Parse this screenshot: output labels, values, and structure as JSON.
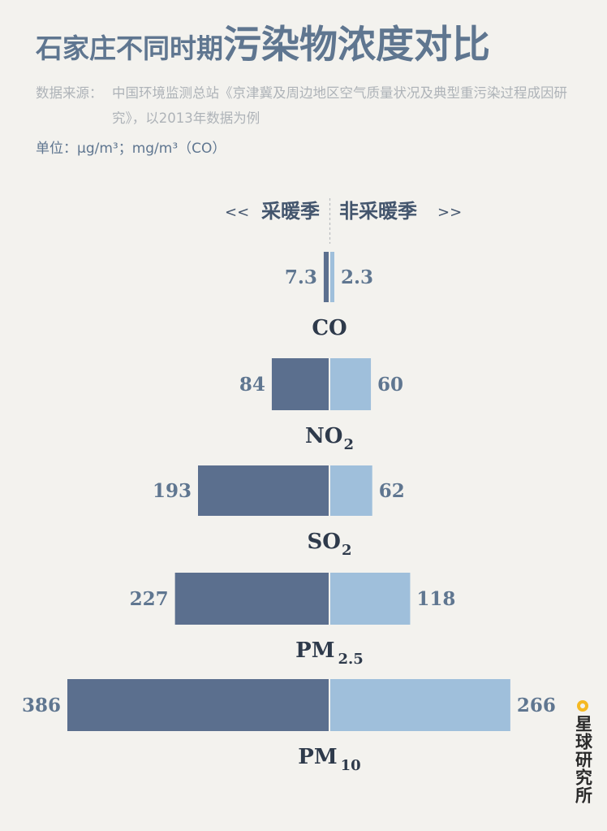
{
  "title": {
    "part1": "石家庄不同时期",
    "part2": "污染物浓度对比"
  },
  "source": {
    "label": "数据来源：",
    "text": "中国环境监测总站《京津冀及周边地区空气质量状况及典型重污染过程成因研究》，以2013年数据为例"
  },
  "unit": "单位：μg/m³；mg/m³（CO）",
  "brand": {
    "text": "星球研究所",
    "accent": "#f5b923"
  },
  "colors": {
    "heating": "#5b6f8e",
    "nonheating": "#9fbfdb",
    "value_text": "#5f7690"
  },
  "chart_data": {
    "type": "bar",
    "orientation": "diverging-horizontal",
    "series_labels": {
      "left_arrow": "<<",
      "right_arrow": ">>"
    },
    "series": [
      {
        "name": "采暖季",
        "values": [
          7.3,
          84,
          193,
          227,
          386
        ],
        "labels": [
          "7.3",
          "84",
          "193",
          "227",
          "386"
        ]
      },
      {
        "name": "非采暖季",
        "values": [
          2.3,
          60,
          62,
          118,
          266
        ],
        "labels": [
          "2.3",
          "60",
          "62",
          "118",
          "266"
        ]
      }
    ],
    "categories": [
      {
        "base": "CO",
        "sub": ""
      },
      {
        "base": "NO",
        "sub": "2"
      },
      {
        "base": "SO",
        "sub": "2"
      },
      {
        "base": "PM",
        "sub": "2.5"
      },
      {
        "base": "PM",
        "sub": "10"
      }
    ]
  }
}
